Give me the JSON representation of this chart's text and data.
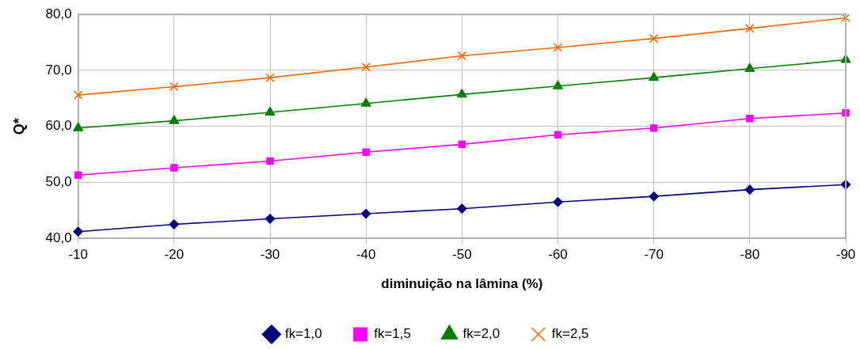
{
  "chart_data": {
    "type": "line",
    "xlabel": "diminuição na lâmina (%)",
    "ylabel": "Q*",
    "categories": [
      "-10",
      "-20",
      "-30",
      "-40",
      "-50",
      "-60",
      "-70",
      "-80",
      "-90"
    ],
    "ylim": [
      40,
      80
    ],
    "yticks": [
      {
        "value": 40,
        "label": "40,0"
      },
      {
        "value": 50,
        "label": "50,0"
      },
      {
        "value": 60,
        "label": "60,0"
      },
      {
        "value": 70,
        "label": "70,0"
      },
      {
        "value": 80,
        "label": "80,0"
      }
    ],
    "grid": true,
    "legend": "bottom",
    "line_style": "solid",
    "series": [
      {
        "name": "fk=1,0",
        "color": "#000080",
        "marker": "diamond",
        "values": [
          41.2,
          42.5,
          43.5,
          44.4,
          45.3,
          46.5,
          47.5,
          48.7,
          49.6
        ]
      },
      {
        "name": "fk=1,5",
        "color": "#ff00ff",
        "marker": "square",
        "values": [
          51.3,
          52.6,
          53.8,
          55.4,
          56.8,
          58.5,
          59.7,
          61.4,
          62.4
        ]
      },
      {
        "name": "fk=2,0",
        "color": "#008000",
        "marker": "triangle",
        "values": [
          59.7,
          61.0,
          62.5,
          64.1,
          65.7,
          67.2,
          68.7,
          70.3,
          71.9
        ]
      },
      {
        "name": "fk=2,5",
        "color": "#ff6600",
        "marker": "cross",
        "values": [
          65.6,
          67.1,
          68.7,
          70.6,
          72.6,
          74.1,
          75.7,
          77.5,
          79.4
        ]
      }
    ]
  }
}
